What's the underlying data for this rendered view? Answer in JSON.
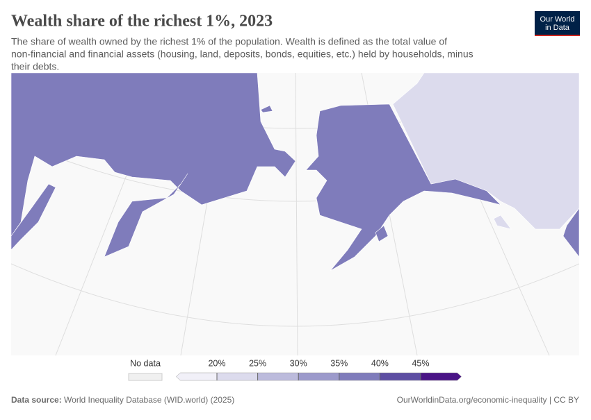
{
  "header": {
    "title": "Wealth share of the richest 1%, 2023",
    "subtitle": [
      "The share of wealth owned by the richest 1% of the population. Wealth is defined as the total value of",
      "non-financial and financial assets (housing, land, deposits, bonds, equities, etc.) held by households, minus",
      "their debts."
    ]
  },
  "logo": [
    "Our World",
    "in Data"
  ],
  "legend": {
    "no_data": "No data",
    "ticks": [
      {
        "value": 20,
        "label": "20%"
      },
      {
        "value": 25,
        "label": "25%"
      },
      {
        "value": 30,
        "label": "30%"
      },
      {
        "value": 35,
        "label": "35%"
      },
      {
        "value": 40,
        "label": "40%"
      },
      {
        "value": 45,
        "label": "45%"
      }
    ],
    "colors": [
      "#f1f0f8",
      "#dcdbed",
      "#bcbbdc",
      "#9c9acb",
      "#7f7cbb",
      "#5d4ea2",
      "#4a1486"
    ]
  },
  "footer": {
    "source_label": "Data source:",
    "source": "World Inequality Database (WID.world) (2025)",
    "url": "OurWorldinData.org/economic-inequality | CC BY"
  }
}
